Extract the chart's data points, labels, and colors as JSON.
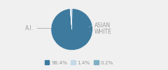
{
  "slices": [
    98.4,
    1.4,
    0.2
  ],
  "colors": [
    "#3d7a9e",
    "#c5d9e6",
    "#7eafc4"
  ],
  "legend_labels": [
    "98.4%",
    "1.4%",
    "0.2%"
  ],
  "legend_colors": [
    "#3d7a9e",
    "#c5d9e6",
    "#7eafc4"
  ],
  "startangle": 95,
  "background_color": "#f0f0f0",
  "label_color": "#999999",
  "label_fontsize": 5.5
}
